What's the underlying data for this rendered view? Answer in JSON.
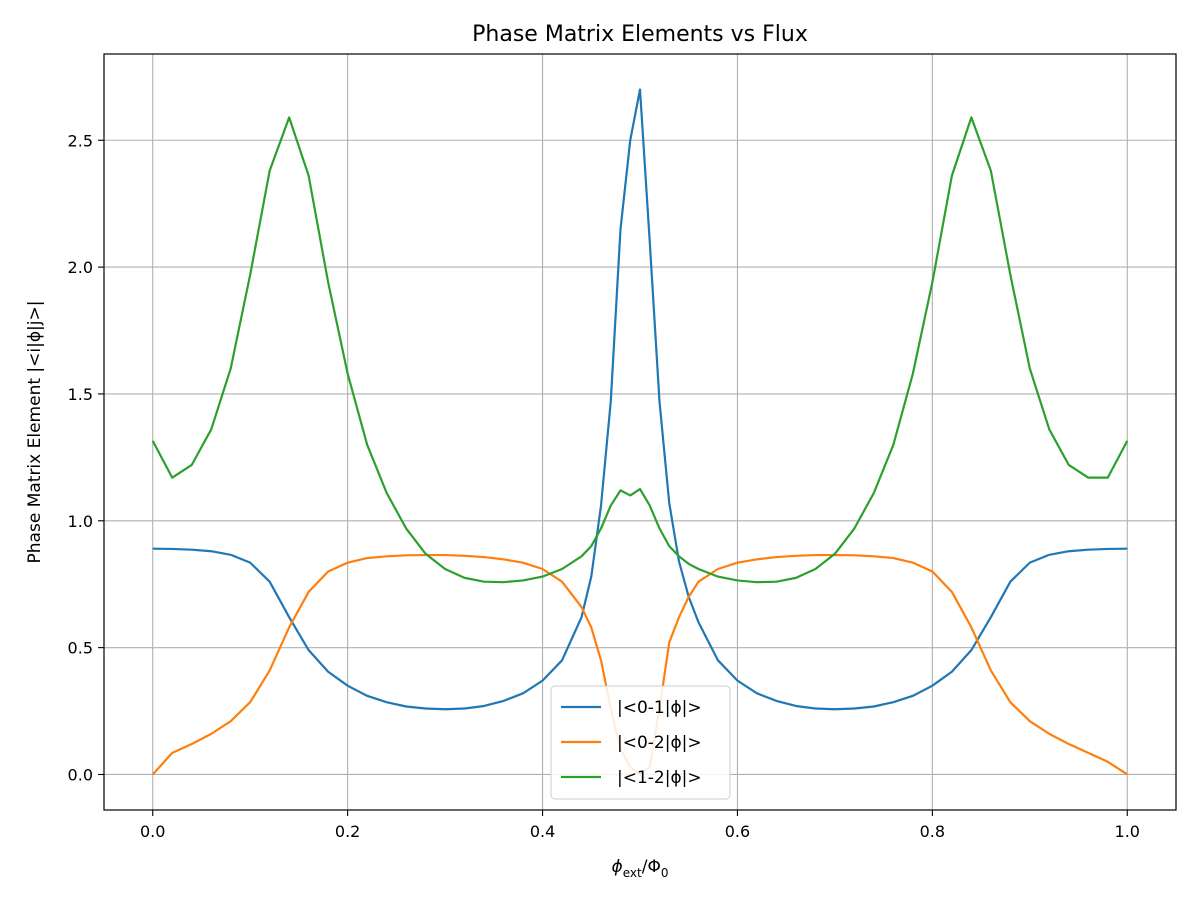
{
  "chart_data": {
    "type": "line",
    "title": "Phase Matrix Elements vs Flux",
    "xlabel": "ϕ_ext/Φ_0",
    "xlabel_main": "ϕ",
    "xlabel_sub": "ext",
    "xlabel_mid": "/Φ",
    "xlabel_sub2": "0",
    "ylabel": "Phase Matrix Element |<i|ϕ|j>|",
    "xlim": [
      -0.05,
      1.05
    ],
    "ylim": [
      -0.14,
      2.84
    ],
    "xticks": [
      0.0,
      0.2,
      0.4,
      0.6,
      0.8,
      1.0
    ],
    "xtick_labels": [
      "0.0",
      "0.2",
      "0.4",
      "0.6",
      "0.8",
      "1.0"
    ],
    "yticks": [
      0.0,
      0.5,
      1.0,
      1.5,
      2.0,
      2.5
    ],
    "ytick_labels": [
      "0.0",
      "0.5",
      "1.0",
      "1.5",
      "2.0",
      "2.5"
    ],
    "grid": true,
    "legend_position": "lower-center",
    "x": [
      0.0,
      0.02,
      0.04,
      0.06,
      0.08,
      0.1,
      0.12,
      0.14,
      0.16,
      0.18,
      0.2,
      0.22,
      0.24,
      0.26,
      0.28,
      0.3,
      0.32,
      0.34,
      0.36,
      0.38,
      0.4,
      0.42,
      0.44,
      0.45,
      0.46,
      0.47,
      0.48,
      0.49,
      0.5,
      0.51,
      0.52,
      0.53,
      0.54,
      0.55,
      0.56,
      0.58,
      0.6,
      0.62,
      0.64,
      0.66,
      0.68,
      0.7,
      0.72,
      0.74,
      0.76,
      0.78,
      0.8,
      0.82,
      0.84,
      0.86,
      0.88,
      0.9,
      0.92,
      0.94,
      0.96,
      0.98,
      1.0
    ],
    "series": [
      {
        "name": "|<0-1|ϕ|>",
        "color": "#1f77b4",
        "values": [
          0.89,
          0.889,
          0.886,
          0.88,
          0.866,
          0.835,
          0.76,
          0.62,
          0.49,
          0.405,
          0.35,
          0.31,
          0.285,
          0.268,
          0.26,
          0.257,
          0.26,
          0.27,
          0.29,
          0.32,
          0.37,
          0.45,
          0.62,
          0.78,
          1.06,
          1.47,
          2.15,
          2.5,
          2.7,
          2.1,
          1.47,
          1.07,
          0.84,
          0.7,
          0.6,
          0.45,
          0.37,
          0.32,
          0.29,
          0.27,
          0.26,
          0.257,
          0.26,
          0.268,
          0.285,
          0.31,
          0.35,
          0.405,
          0.49,
          0.62,
          0.76,
          0.835,
          0.866,
          0.88,
          0.886,
          0.889,
          0.89
        ]
      },
      {
        "name": "|<0-2|ϕ|>",
        "color": "#ff7f0e",
        "values": [
          0.0,
          0.085,
          0.12,
          0.16,
          0.21,
          0.285,
          0.41,
          0.58,
          0.72,
          0.8,
          0.835,
          0.853,
          0.86,
          0.864,
          0.865,
          0.865,
          0.862,
          0.857,
          0.848,
          0.835,
          0.81,
          0.76,
          0.66,
          0.58,
          0.45,
          0.26,
          0.1,
          0.03,
          0.0,
          0.03,
          0.26,
          0.52,
          0.62,
          0.7,
          0.76,
          0.81,
          0.835,
          0.848,
          0.857,
          0.862,
          0.865,
          0.865,
          0.864,
          0.86,
          0.853,
          0.835,
          0.8,
          0.72,
          0.58,
          0.41,
          0.285,
          0.21,
          0.16,
          0.12,
          0.085,
          0.05,
          0.0
        ]
      },
      {
        "name": "|<1-2|ϕ|>",
        "color": "#2ca02c",
        "values": [
          1.315,
          1.17,
          1.22,
          1.36,
          1.6,
          1.97,
          2.38,
          2.59,
          2.36,
          1.94,
          1.58,
          1.3,
          1.11,
          0.97,
          0.87,
          0.81,
          0.775,
          0.76,
          0.758,
          0.765,
          0.78,
          0.81,
          0.86,
          0.9,
          0.97,
          1.06,
          1.12,
          1.1,
          1.125,
          1.06,
          0.97,
          0.9,
          0.86,
          0.83,
          0.81,
          0.78,
          0.765,
          0.758,
          0.76,
          0.775,
          0.81,
          0.87,
          0.97,
          1.11,
          1.3,
          1.58,
          1.94,
          2.36,
          2.59,
          2.38,
          1.97,
          1.6,
          1.36,
          1.22,
          1.17,
          1.17,
          1.315
        ]
      }
    ]
  }
}
